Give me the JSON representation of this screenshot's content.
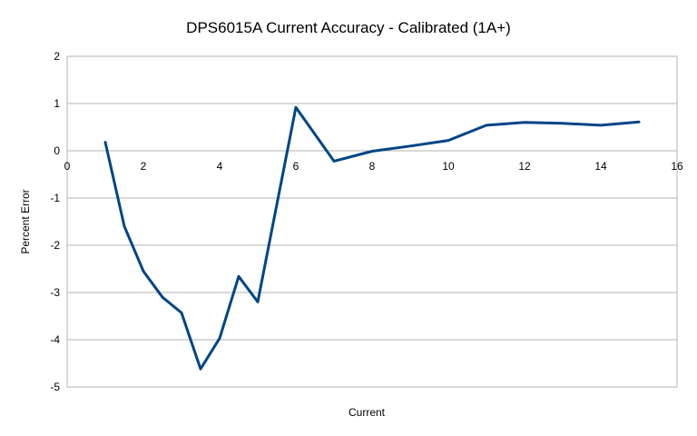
{
  "chart_data": {
    "type": "line",
    "title": "DPS6015A Current Accuracy - Calibrated (1A+)",
    "xlabel": "Current",
    "ylabel": "Percent Error",
    "xlim": [
      0,
      16
    ],
    "ylim": [
      -5,
      2
    ],
    "x_ticks": [
      0,
      2,
      4,
      6,
      8,
      10,
      12,
      14,
      16
    ],
    "y_ticks": [
      2,
      1,
      0,
      -1,
      -2,
      -3,
      -4,
      -5
    ],
    "grid": true,
    "legend": "none",
    "line_color": "#004586",
    "series": [
      {
        "x": [
          1,
          1.5,
          2,
          2.5,
          3,
          3.5,
          4,
          4.5,
          5,
          6,
          7,
          8,
          9,
          10,
          11,
          12,
          13,
          14,
          15
        ],
        "y": [
          0.18,
          -1.6,
          -2.55,
          -3.1,
          -3.43,
          -4.62,
          -3.97,
          -2.66,
          -3.2,
          0.92,
          -0.22,
          -0.01,
          0.1,
          0.22,
          0.54,
          0.6,
          0.58,
          0.54,
          0.61
        ]
      }
    ]
  }
}
